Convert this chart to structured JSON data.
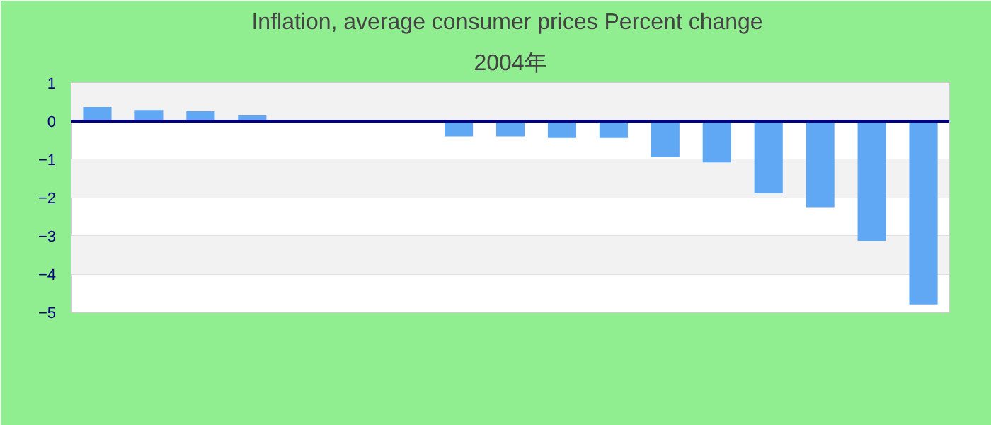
{
  "chart_data": {
    "type": "bar",
    "title": "Inflation, average consumer prices  Percent change",
    "subtitle": "2004年",
    "categories": [
      null,
      null,
      null,
      null,
      null,
      null,
      null,
      null,
      null,
      null,
      null,
      null,
      null,
      null,
      null,
      null,
      null
    ],
    "series": [
      {
        "color": "#60a8f4",
        "values": [
          0.37,
          0.29,
          0.26,
          0.15,
          null,
          null,
          null,
          -0.4,
          -0.4,
          -0.44,
          -0.44,
          -0.94,
          -1.08,
          -1.89,
          -2.25,
          -3.13,
          -4.79
        ]
      }
    ],
    "ylim": [
      -5,
      1
    ],
    "yticks": [
      1,
      0,
      -1,
      -2,
      -3,
      -4,
      -5
    ],
    "grid": "y",
    "tick_labels": "y",
    "ref_lines": [
      {
        "axis": "y",
        "value": 0,
        "color": "#000080"
      }
    ]
  }
}
